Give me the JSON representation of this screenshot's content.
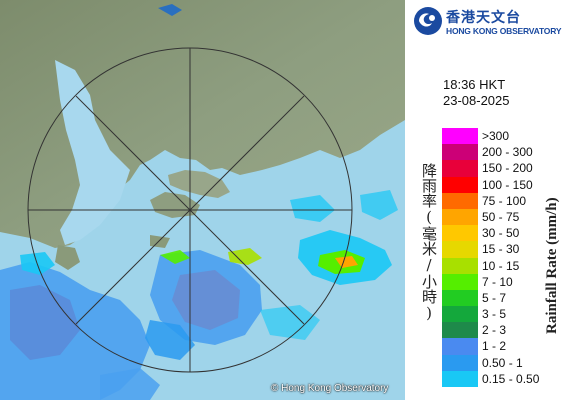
{
  "header": {
    "org_name_cn": "香港天文台",
    "org_name_en": "HONG KONG OBSERVATORY"
  },
  "timestamp": {
    "time": "18:36 HKT",
    "date": "23-08-2025"
  },
  "map": {
    "copyright": "© Hong Kong Observatory"
  },
  "legend": {
    "title_cn": "降雨率(毫米/小時)",
    "title_en": "Rainfall Rate (mm/h)",
    "items": [
      {
        "label": ">300",
        "color": "#ff00ff"
      },
      {
        "label": "200 - 300",
        "color": "#cc0077"
      },
      {
        "label": "150 - 200",
        "color": "#e8003a"
      },
      {
        "label": "100 - 150",
        "color": "#ff0000"
      },
      {
        "label": "75 - 100",
        "color": "#ff6a00"
      },
      {
        "label": "50 - 75",
        "color": "#ffa500"
      },
      {
        "label": "30 - 50",
        "color": "#ffc800"
      },
      {
        "label": "15 - 30",
        "color": "#e6d800"
      },
      {
        "label": "10 - 15",
        "color": "#a8e000"
      },
      {
        "label": "7 - 10",
        "color": "#55ee00"
      },
      {
        "label": "5 - 7",
        "color": "#22cc22"
      },
      {
        "label": "3 - 5",
        "color": "#14a83c"
      },
      {
        "label": "2 - 3",
        "color": "#1e8a4a"
      },
      {
        "label": "1 - 2",
        "color": "#4a8af0"
      },
      {
        "label": "0.50 - 1",
        "color": "#2a9af0"
      },
      {
        "label": "0.15 - 0.50",
        "color": "#19c8f5"
      }
    ]
  }
}
